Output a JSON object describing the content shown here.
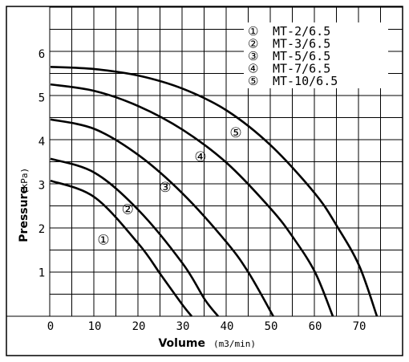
{
  "chart_data": {
    "type": "line",
    "xlabel": "Volume",
    "xlabel_unit": "(m3/min)",
    "ylabel": "Pressure",
    "ylabel_unit": "(kPa)",
    "xlim": [
      0,
      75
    ],
    "ylim": [
      0,
      6.5
    ],
    "x_ticks": [
      "0",
      "10",
      "20",
      "30",
      "40",
      "50",
      "60",
      "70"
    ],
    "y_ticks": [
      "1",
      "2",
      "3",
      "4",
      "5",
      "6"
    ],
    "grid": true,
    "legend_position": "top-right",
    "series": [
      {
        "marker": "①",
        "name": "MT-2/6.5",
        "x": [
          0,
          10,
          20,
          25,
          30,
          32
        ],
        "y": [
          3.1,
          2.72,
          1.65,
          0.95,
          0.25,
          0
        ]
      },
      {
        "marker": "②",
        "name": "MT-3/6.5",
        "x": [
          0,
          10,
          20,
          30,
          35,
          38
        ],
        "y": [
          3.6,
          3.28,
          2.42,
          1.2,
          0.38,
          0
        ]
      },
      {
        "marker": "③",
        "name": "MT-5/6.5",
        "x": [
          0,
          10,
          20,
          30,
          40,
          45,
          50.5
        ],
        "y": [
          4.5,
          4.28,
          3.68,
          2.8,
          1.68,
          0.98,
          0
        ]
      },
      {
        "marker": "④",
        "name": "MT-7/6.5",
        "x": [
          0,
          10,
          20,
          30,
          40,
          50,
          55,
          60,
          64
        ],
        "y": [
          5.3,
          5.15,
          4.8,
          4.26,
          3.5,
          2.45,
          1.8,
          1.0,
          0
        ]
      },
      {
        "marker": "⑤",
        "name": "MT-10/6.5",
        "x": [
          0,
          10,
          20,
          30,
          40,
          50,
          60,
          65,
          70,
          74
        ],
        "y": [
          5.7,
          5.65,
          5.5,
          5.2,
          4.7,
          3.9,
          2.8,
          2.05,
          1.15,
          0
        ]
      }
    ],
    "curve_labels": [
      {
        "text": "①",
        "x": 12,
        "y": 1.75
      },
      {
        "text": "②",
        "x": 17.5,
        "y": 2.45
      },
      {
        "text": "③",
        "x": 26,
        "y": 2.95
      },
      {
        "text": "④",
        "x": 34,
        "y": 3.65
      },
      {
        "text": "⑤",
        "x": 42,
        "y": 4.2
      }
    ]
  }
}
